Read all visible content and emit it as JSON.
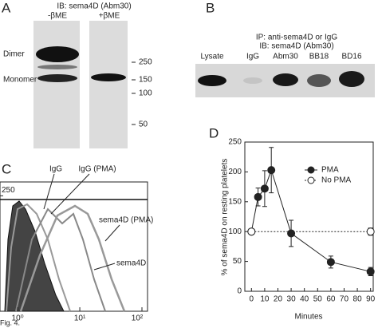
{
  "panel_a": {
    "label": "A",
    "title": "IB: sema4D (Abm30)",
    "lanes": [
      "-βME",
      "+βME"
    ],
    "bands": [
      "Dimer",
      "Monomer"
    ],
    "markers": [
      250,
      150,
      100,
      50
    ]
  },
  "panel_b": {
    "label": "B",
    "title_lines": [
      "IP: anti-sema4D or IgG",
      "IB: sema4D (Abm30)"
    ],
    "lanes": [
      "Lysate",
      "IgG",
      "Abm30",
      "BB18",
      "BD16"
    ]
  },
  "panel_c": {
    "label": "C",
    "log_x": true,
    "xlim": [
      0.52,
      123
    ],
    "xticks": [
      {
        "value": 1,
        "label": "10⁰"
      },
      {
        "value": 10,
        "label": "10¹"
      },
      {
        "value": 100,
        "label": "10²"
      }
    ],
    "ylim": [
      0,
      280
    ],
    "yticks": [
      250
    ],
    "annotations": [
      "IgG",
      "IgG (PMA)",
      "sema4D (PMA)",
      "sema4D"
    ]
  },
  "chart_data": {
    "type": "line",
    "label": "D",
    "x_label": "Minutes",
    "y_label": "% of sema4D on resting platelets",
    "xlim": [
      -5,
      92
    ],
    "xticks": [
      0,
      10,
      20,
      30,
      40,
      50,
      60,
      70,
      80,
      90
    ],
    "ylim": [
      0,
      250
    ],
    "yticks": [
      0,
      50,
      100,
      150,
      200,
      250
    ],
    "legend": "top-right",
    "series": [
      {
        "name": "PMA",
        "color": "#222222",
        "marker": "filled",
        "x": [
          0,
          5,
          10,
          15,
          30,
          60,
          90
        ],
        "values": [
          100,
          158,
          172,
          203,
          97,
          49,
          33
        ],
        "errors": [
          0,
          15,
          30,
          38,
          22,
          10,
          7
        ]
      },
      {
        "name": "No PMA",
        "color": "#222222",
        "marker": "open",
        "dashed": true,
        "x": [
          0,
          90
        ],
        "values": [
          100,
          100
        ],
        "errors": [
          0,
          6
        ]
      }
    ]
  },
  "caption": "Fig. 4."
}
